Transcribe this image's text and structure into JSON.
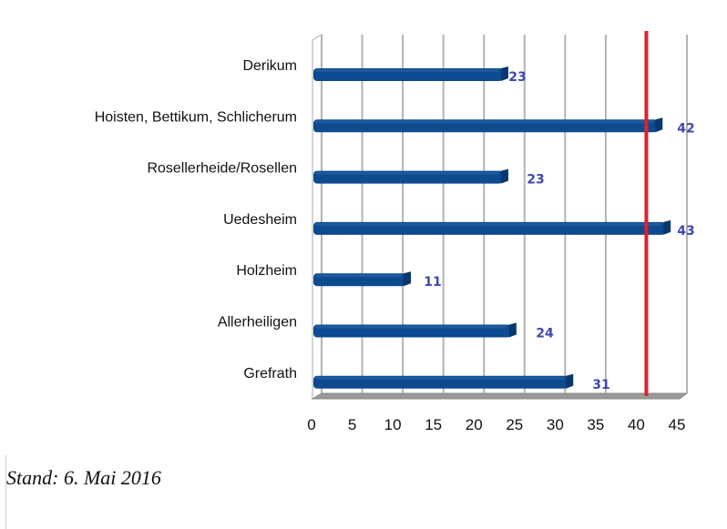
{
  "chart_data": {
    "type": "bar",
    "orientation": "horizontal",
    "categories": [
      "Derikum",
      "Hoisten, Bettikum, Schlicherum",
      "Rosellerheide/Rosellen",
      "Uedesheim",
      "Holzheim",
      "Allerheiligen",
      "Grefrath"
    ],
    "values": [
      23,
      42,
      23,
      43,
      11,
      24,
      31
    ],
    "xlim": [
      0,
      45
    ],
    "xticks": [
      "0",
      "5",
      "10",
      "15",
      "20",
      "25",
      "30",
      "35",
      "40",
      "45"
    ],
    "grid": true,
    "reference_line": {
      "value": 40,
      "color": "#e0202a"
    },
    "bar_color": "#0d4a8f",
    "data_label_color": "#3f48b0",
    "legend": "none"
  },
  "note": "Stand: 6. Mai 2016"
}
